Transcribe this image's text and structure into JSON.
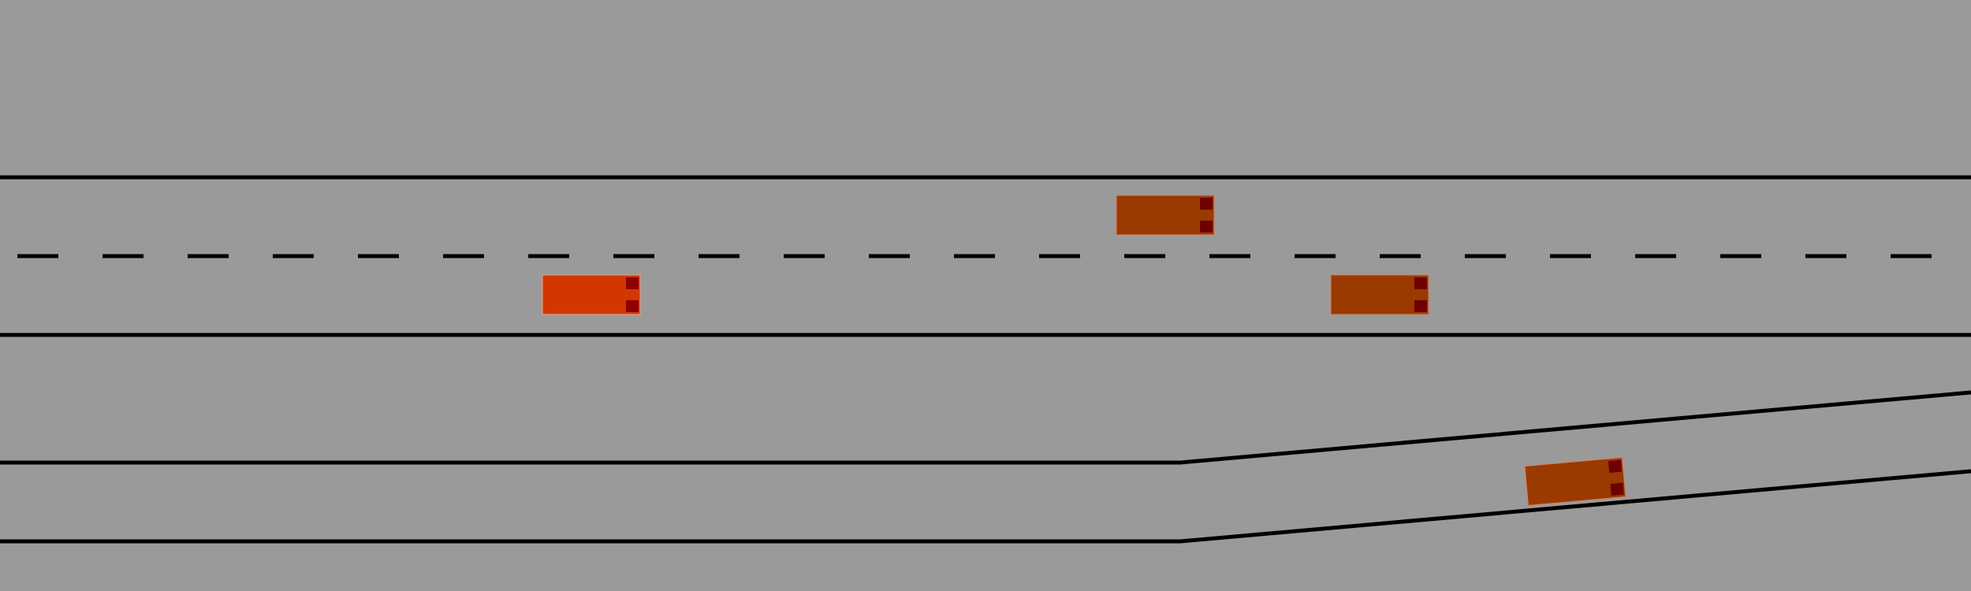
{
  "scene": {
    "background_color": "#9a9a9a",
    "lane_line_color": "#000000",
    "vehicles": [
      {
        "name": "ego-vehicle",
        "role": "ego",
        "body_color": "#d23700",
        "light_color": "#8b0000"
      },
      {
        "name": "vehicle-upper-lane",
        "role": "other",
        "body_color": "#9a3a00",
        "light_color": "#6e0000"
      },
      {
        "name": "vehicle-lower-lane-ahead",
        "role": "other",
        "body_color": "#9a3a00",
        "light_color": "#6e0000"
      },
      {
        "name": "vehicle-on-ramp",
        "role": "other",
        "body_color": "#9a3a00",
        "light_color": "#6e0000"
      }
    ]
  }
}
